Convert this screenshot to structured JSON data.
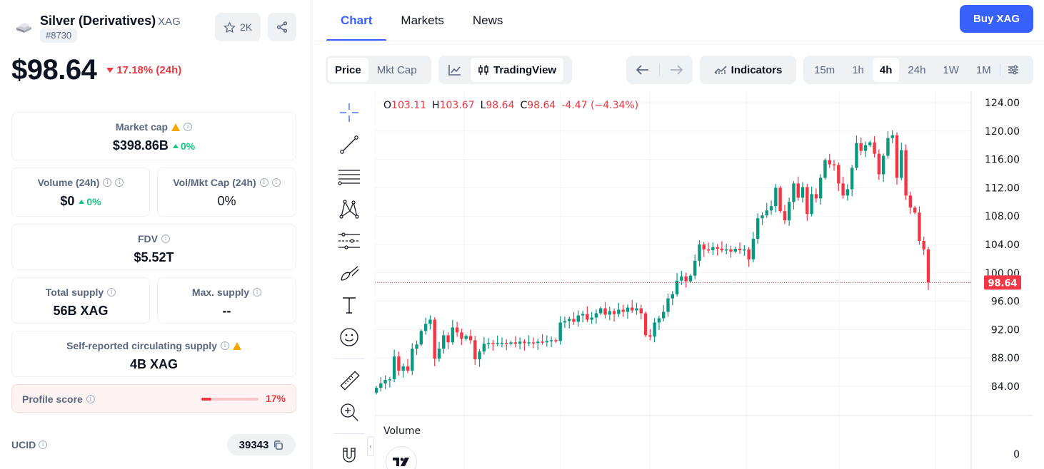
{
  "coin": {
    "name": "Silver (Derivatives)",
    "symbol": "XAG",
    "rank": "#8730",
    "watchlist_count": "2K",
    "price": "$98.64",
    "change": "17.18% (24h)"
  },
  "stats": {
    "market_cap": {
      "label": "Market cap",
      "value": "$398.86B",
      "change": "0%"
    },
    "volume": {
      "label": "Volume (24h)",
      "value": "$0",
      "change": "0%"
    },
    "vol_mkt": {
      "label": "Vol/Mkt Cap (24h)",
      "value": "0%"
    },
    "fdv": {
      "label": "FDV",
      "value": "$5.52T"
    },
    "total_supply": {
      "label": "Total supply",
      "value": "56B XAG"
    },
    "max_supply": {
      "label": "Max. supply",
      "value": "--"
    },
    "circ_supply": {
      "label": "Self-reported circulating supply",
      "value": "4B XAG"
    },
    "profile_score": {
      "label": "Profile score",
      "value": "17%",
      "level": 0.17
    },
    "ucid": {
      "label": "UCID",
      "value": "39343"
    }
  },
  "tabs": [
    "Chart",
    "Markets",
    "News"
  ],
  "active_tab": "Chart",
  "buy_label": "Buy XAG",
  "toolbar": {
    "price": "Price",
    "mkt_cap": "Mkt Cap",
    "tradingview": "TradingView",
    "indicators": "Indicators",
    "intervals": [
      "15m",
      "1h",
      "4h",
      "24h",
      "1W",
      "1M"
    ],
    "active_interval": "4h"
  },
  "ohlc": {
    "o_label": "O",
    "o": "103.11",
    "h_label": "H",
    "h": "103.67",
    "l_label": "L",
    "l": "98.64",
    "c_label": "C",
    "c": "98.64",
    "change": "-4.47 (−4.34%)"
  },
  "volume_label": "Volume",
  "colors": {
    "up": "#089981",
    "down": "#f23645",
    "accent": "#3861fb",
    "negative": "#ea3943",
    "positive": "#16c784"
  },
  "chart_data": {
    "type": "candlestick",
    "y_ticks": [
      "124.00",
      "120.00",
      "116.00",
      "112.00",
      "108.00",
      "104.00",
      "100.00",
      "96.00",
      "92.00",
      "88.00",
      "84.00"
    ],
    "ylim": [
      80,
      125
    ],
    "last_price": "98.64",
    "volume_ticks": [
      "0"
    ],
    "grid": true,
    "series_close": [
      83.8,
      84.4,
      84.9,
      85.0,
      88.2,
      86.2,
      86.8,
      86.2,
      89.3,
      89.9,
      91.8,
      92.8,
      93.4,
      87.9,
      89.3,
      91.2,
      90.2,
      92.3,
      91.6,
      90.7,
      91.1,
      90.5,
      87.8,
      88.9,
      90.0,
      90.1,
      90.0,
      90.1,
      90.1,
      90.0,
      90.2,
      90.0,
      90.3,
      90.1,
      90.2,
      90.1,
      90.3,
      90.2,
      90.4,
      90.5,
      90.4,
      93.0,
      93.2,
      93.5,
      93.1,
      94.0,
      94.2,
      93.4,
      93.7,
      94.3,
      95.0,
      94.1,
      94.6,
      94.2,
      94.8,
      94.5,
      95.1,
      94.7,
      95.0,
      94.3,
      91.2,
      91.0,
      93.0,
      93.6,
      94.5,
      96.4,
      97.0,
      98.9,
      99.5,
      98.8,
      99.6,
      101.7,
      104.0,
      103.3,
      103.2,
      103.6,
      103.4,
      103.2,
      103.3,
      103.0,
      103.4,
      103.2,
      103.3,
      101.9,
      104.8,
      107.7,
      108.1,
      108.8,
      109.4,
      112.0,
      108.7,
      107.4,
      110.0,
      112.6,
      110.6,
      112.1,
      108.3,
      111.1,
      110.5,
      113.4,
      115.9,
      115.3,
      115.2,
      112.6,
      110.9,
      111.8,
      114.8,
      118.3,
      117.2,
      118.0,
      118.4,
      116.8,
      113.9,
      116.5,
      119.0,
      119.4,
      113.4,
      117.3,
      110.9,
      109.2,
      108.5,
      104.5,
      103.3,
      98.64
    ],
    "series_volume": []
  }
}
